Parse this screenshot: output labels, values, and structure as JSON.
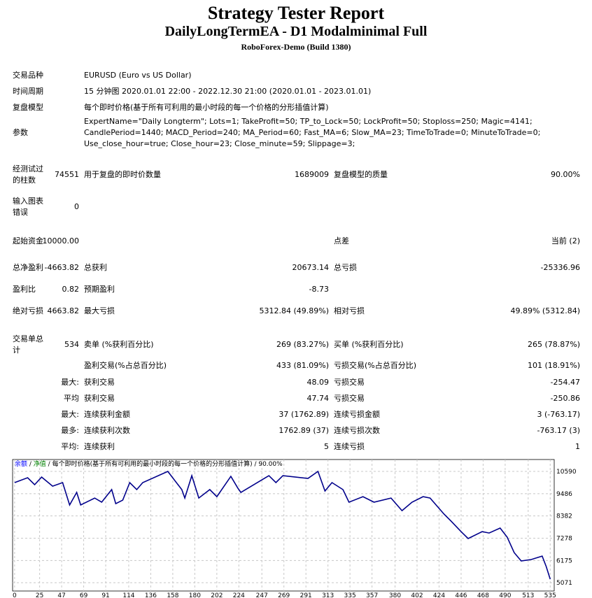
{
  "header": {
    "title": "Strategy Tester Report",
    "subtitle": "DailyLongTermEA - D1 Modalminimal Full",
    "server": "RoboForex-Demo (Build 1380)"
  },
  "table": {
    "rows": [
      [
        "交易品种",
        "EURUSD (Euro vs US Dollar)"
      ],
      [
        "时间周期",
        "15 分钟图 2020.01.01 22:00 - 2022.12.30 21:00 (2020.01.01 - 2023.01.01)"
      ],
      [
        "复盘模型",
        "每个即时价格(基于所有可利用的最小时段的每一个价格的分形插值计算)"
      ],
      [
        "参数",
        "ExpertName=\"Daily Longterm\"; Lots=1; TakeProfit=50; TP_to_Lock=50; LockProfit=50; Stoploss=250; Magic=4141; CandlePeriod=1440; MACD_Period=240; MA_Period=60; Fast_MA=6; Slow_MA=23; TimeToTrade=0; MinuteToTrade=0; Use_close_hour=true; Close_hour=23; Close_minute=59; Slippage=3;"
      ],
      [
        "经测试过的柱数",
        "74551",
        "用于复盘的即时价数量",
        "1689009",
        "复盘模型的质量",
        "90.00%"
      ],
      [
        "输入图表错误",
        "0"
      ],
      [
        "起始资金",
        "10000.00",
        null,
        null,
        "点差",
        "当前 (2)"
      ],
      [
        "总净盈利",
        "-4663.82",
        "总获利",
        "20673.14",
        "总亏损",
        "-25336.96"
      ],
      [
        "盈利比",
        "0.82",
        "预期盈利",
        "-8.73"
      ],
      [
        "绝对亏损",
        "4663.82",
        "最大亏损",
        "5312.84 (49.89%)",
        "相对亏损",
        "49.89% (5312.84)"
      ],
      [
        "交易单总计",
        "534",
        "卖单 (%获利百分比)",
        "269 (83.27%)",
        "买单 (%获利百分比)",
        "265 (78.87%)"
      ],
      [
        null,
        null,
        "盈利交易(%占总百分比)",
        "433 (81.09%)",
        "亏损交易(%占总百分比)",
        "101 (18.91%)"
      ],
      [
        null,
        "最大:",
        "获利交易",
        "48.09",
        "亏损交易",
        "-254.47"
      ],
      [
        null,
        "平均",
        "获利交易",
        "47.74",
        "亏损交易",
        "-250.86"
      ],
      [
        null,
        "最大:",
        "连续获利金额",
        "37 (1762.89)",
        "连续亏损金额",
        "3 (-763.17)"
      ],
      [
        null,
        "最多:",
        "连续获利次数",
        "1762.89 (37)",
        "连续亏损次数",
        "-763.17 (3)"
      ],
      [
        null,
        "平均:",
        "连续获利",
        "5",
        "连续亏损",
        "1"
      ]
    ]
  },
  "chart": {
    "type": "line",
    "legend": [
      "余额",
      "净值",
      "每个即时价格(基于所有可利用的最小时段的每一个价格的分形插值计算)",
      "90.00%"
    ],
    "separator": "/",
    "color": "#00008b",
    "x": [
      0,
      13,
      20,
      27,
      38,
      48,
      55,
      62,
      66,
      80,
      87,
      97,
      101,
      108,
      115,
      122,
      128,
      153,
      167,
      170,
      177,
      184,
      195,
      202,
      216,
      223,
      226,
      254,
      261,
      268,
      293,
      303,
      310,
      317,
      328,
      334,
      348,
      359,
      376,
      387,
      397,
      408,
      415,
      429,
      436,
      446,
      453,
      467,
      474,
      485,
      492,
      499,
      506,
      516,
      527,
      531,
      535
    ],
    "values": [
      10035,
      10280,
      9930,
      10310,
      9860,
      10035,
      8925,
      9550,
      8925,
      9270,
      9065,
      9690,
      8990,
      9165,
      10035,
      9690,
      10035,
      10590,
      9690,
      9270,
      10380,
      9270,
      9690,
      9340,
      10345,
      9760,
      9550,
      10380,
      10035,
      10380,
      10245,
      10590,
      9620,
      10035,
      9690,
      9065,
      9340,
      9065,
      9270,
      8645,
      9065,
      9340,
      9270,
      8470,
      8125,
      7605,
      7260,
      7605,
      7535,
      7780,
      7330,
      6565,
      6150,
      6220,
      6390,
      5870,
      5245
    ],
    "xlim": [
      -2,
      539
    ],
    "ylim": [
      4660,
      11180
    ],
    "xticks": [
      0,
      25,
      47,
      69,
      91,
      114,
      136,
      158,
      180,
      202,
      224,
      247,
      269,
      291,
      313,
      335,
      357,
      380,
      402,
      424,
      446,
      468,
      490,
      513,
      535
    ],
    "yticks": [
      5071,
      6175,
      7278,
      8382,
      9486,
      10590
    ]
  }
}
